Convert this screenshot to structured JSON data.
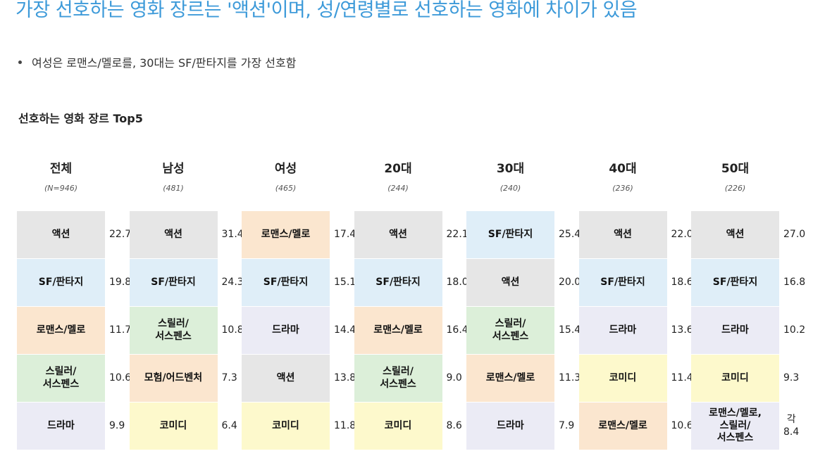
{
  "header": {
    "title": "가장 선호하는 영화 장르는 '액션'이며, 성/연령별로 선호하는 영화에 차이가 있음",
    "bullet": "여성은 로맨스/멜로를, 30대는 SF/판타지를 가장 선호함",
    "subtitle": "선호하는 영화 장르  Top5"
  },
  "colors": {
    "title": "#3d9ad9",
    "genre": {
      "액션": "#e6e6e6",
      "SF/판타지": "#dfeef8",
      "로맨스/멜로": "#fbe6cf",
      "스릴러/서스펜스": "#dcefd9",
      "드라마": "#ebebf5",
      "모험/어드벤처": "#fbe6cf",
      "코미디": "#fdf9cc",
      "로맨스/멜로,스릴러/서스펜스": "#ebebf5"
    }
  },
  "chart_data": {
    "type": "table",
    "title": "선호하는 영화 장르  Top5",
    "groups": [
      {
        "name": "전체",
        "n": "(N=946)",
        "items": [
          {
            "genre": "액션",
            "label": "액션",
            "value": "22.7"
          },
          {
            "genre": "SF/판타지",
            "label": "SF/판타지",
            "value": "19.8"
          },
          {
            "genre": "로맨스/멜로",
            "label": "로맨스/멜로",
            "value": "11.7"
          },
          {
            "genre": "스릴러/서스펜스",
            "label": "스릴러/\n서스펜스",
            "value": "10.6"
          },
          {
            "genre": "드라마",
            "label": "드라마",
            "value": "9.9"
          }
        ]
      },
      {
        "name": "남성",
        "n": "(481)",
        "items": [
          {
            "genre": "액션",
            "label": "액션",
            "value": "31.4"
          },
          {
            "genre": "SF/판타지",
            "label": "SF/판타지",
            "value": "24.3"
          },
          {
            "genre": "스릴러/서스펜스",
            "label": "스릴러/\n서스펜스",
            "value": "10.8"
          },
          {
            "genre": "모험/어드벤처",
            "label": "모험/어드벤처",
            "value": "7.3"
          },
          {
            "genre": "코미디",
            "label": "코미디",
            "value": "6.4"
          }
        ]
      },
      {
        "name": "여성",
        "n": "(465)",
        "items": [
          {
            "genre": "로맨스/멜로",
            "label": "로맨스/멜로",
            "value": "17.4"
          },
          {
            "genre": "SF/판타지",
            "label": "SF/판타지",
            "value": "15.1"
          },
          {
            "genre": "드라마",
            "label": "드라마",
            "value": "14.4"
          },
          {
            "genre": "액션",
            "label": "액션",
            "value": "13.8"
          },
          {
            "genre": "코미디",
            "label": "코미디",
            "value": "11.8"
          }
        ]
      },
      {
        "name": "20대",
        "n": "(244)",
        "items": [
          {
            "genre": "액션",
            "label": "액션",
            "value": "22.1"
          },
          {
            "genre": "SF/판타지",
            "label": "SF/판타지",
            "value": "18.0"
          },
          {
            "genre": "로맨스/멜로",
            "label": "로맨스/멜로",
            "value": "16.4"
          },
          {
            "genre": "스릴러/서스펜스",
            "label": "스릴러/\n서스펜스",
            "value": "9.0"
          },
          {
            "genre": "코미디",
            "label": "코미디",
            "value": "8.6"
          }
        ]
      },
      {
        "name": "30대",
        "n": "(240)",
        "items": [
          {
            "genre": "SF/판타지",
            "label": "SF/판타지",
            "value": "25.4"
          },
          {
            "genre": "액션",
            "label": "액션",
            "value": "20.0"
          },
          {
            "genre": "스릴러/서스펜스",
            "label": "스릴러/\n서스펜스",
            "value": "15.4"
          },
          {
            "genre": "로맨스/멜로",
            "label": "로맨스/멜로",
            "value": "11.3"
          },
          {
            "genre": "드라마",
            "label": "드라마",
            "value": "7.9"
          }
        ]
      },
      {
        "name": "40대",
        "n": "(236)",
        "items": [
          {
            "genre": "액션",
            "label": "액션",
            "value": "22.0"
          },
          {
            "genre": "SF/판타지",
            "label": "SF/판타지",
            "value": "18.6"
          },
          {
            "genre": "드라마",
            "label": "드라마",
            "value": "13.6"
          },
          {
            "genre": "코미디",
            "label": "코미디",
            "value": "11.4"
          },
          {
            "genre": "로맨스/멜로",
            "label": "로맨스/멜로",
            "value": "10.6"
          }
        ]
      },
      {
        "name": "50대",
        "n": "(226)",
        "items": [
          {
            "genre": "액션",
            "label": "액션",
            "value": "27.0"
          },
          {
            "genre": "SF/판타지",
            "label": "SF/판타지",
            "value": "16.8"
          },
          {
            "genre": "드라마",
            "label": "드라마",
            "value": "10.2"
          },
          {
            "genre": "코미디",
            "label": "코미디",
            "value": "9.3"
          },
          {
            "genre": "로맨스/멜로,스릴러/서스펜스",
            "label": "로맨스/멜로,\n스릴러/\n서스펜스",
            "value": "각\n8.4"
          }
        ]
      }
    ]
  }
}
